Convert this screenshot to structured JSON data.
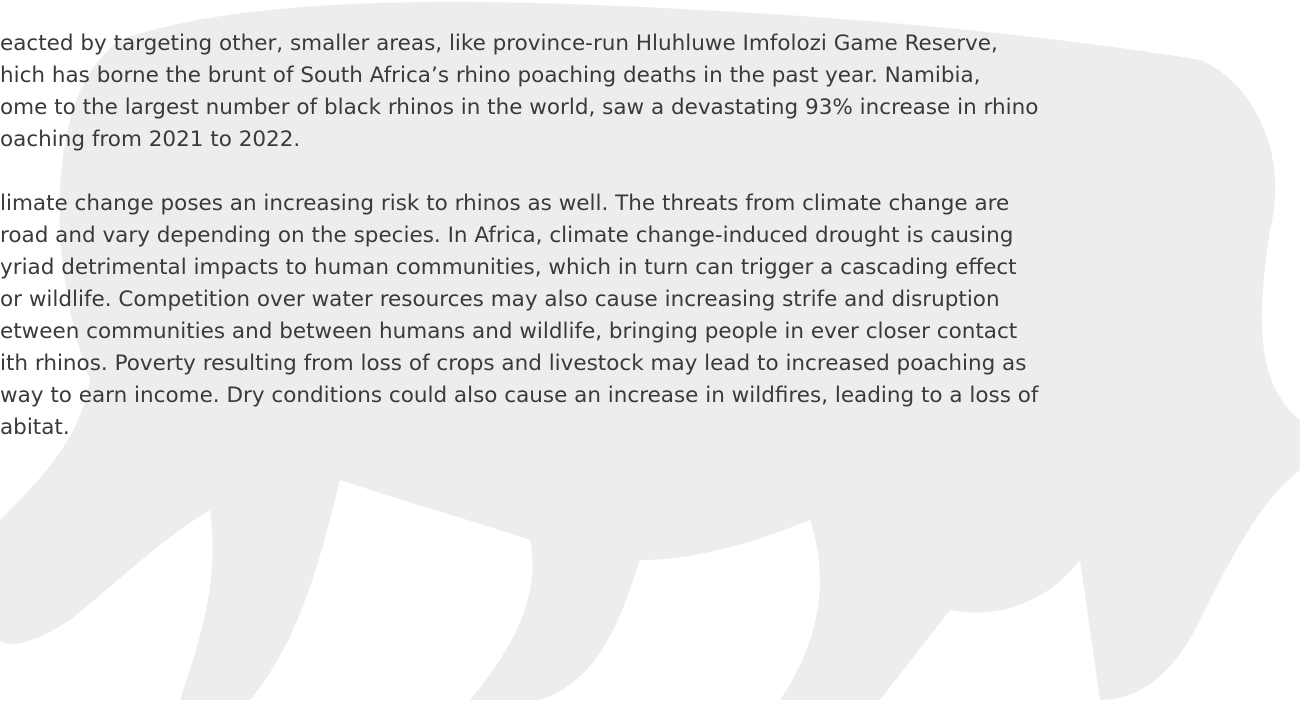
{
  "paragraphs": [
    [
      "eacted by targeting other, smaller areas, like province-run Hluhluwe Imfolozi Game Reserve,",
      "hich has borne the brunt of South Africa’s rhino poaching deaths in the past year. Namibia,",
      "ome to the largest number of black rhinos in the world, saw a devastating 93% increase in rhino",
      "oaching from 2021 to 2022."
    ],
    [
      "limate change poses an increasing risk to rhinos as well. The threats from climate change are",
      "road and vary depending on the species. In Africa, climate change-induced drought is causing",
      "yriad detrimental impacts to human communities, which in turn can trigger a cascading effect",
      "or wildlife. Competition over water resources may also cause increasing strife and disruption",
      "etween communities and between humans and wildlife, bringing people in ever closer contact",
      "ith rhinos. Poverty resulting from loss of crops and livestock may lead to increased poaching as",
      "way to earn income. Dry conditions could also cause an increase in wildfires, leading to a loss of",
      "abitat."
    ]
  ]
}
